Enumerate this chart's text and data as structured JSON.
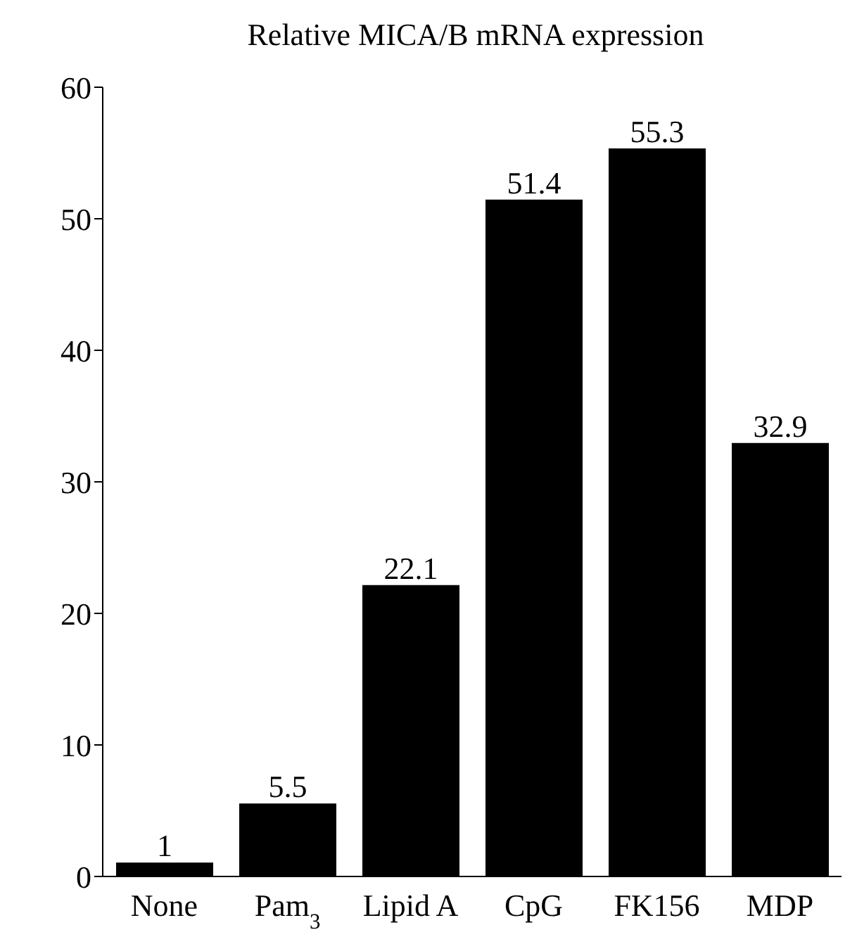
{
  "chart_data": {
    "type": "bar",
    "title": "Relative MICA/B mRNA expression",
    "categories": [
      "None",
      "Pam$_{3}$",
      "Lipid A",
      "CpG",
      "FK156",
      "MDP"
    ],
    "values": [
      1,
      5.5,
      22.1,
      51.4,
      55.3,
      32.9
    ],
    "color": "#000000",
    "ylim": [
      0,
      60
    ],
    "yticks": [
      0,
      10,
      20,
      30,
      40,
      50,
      60
    ],
    "data_labels": true
  }
}
